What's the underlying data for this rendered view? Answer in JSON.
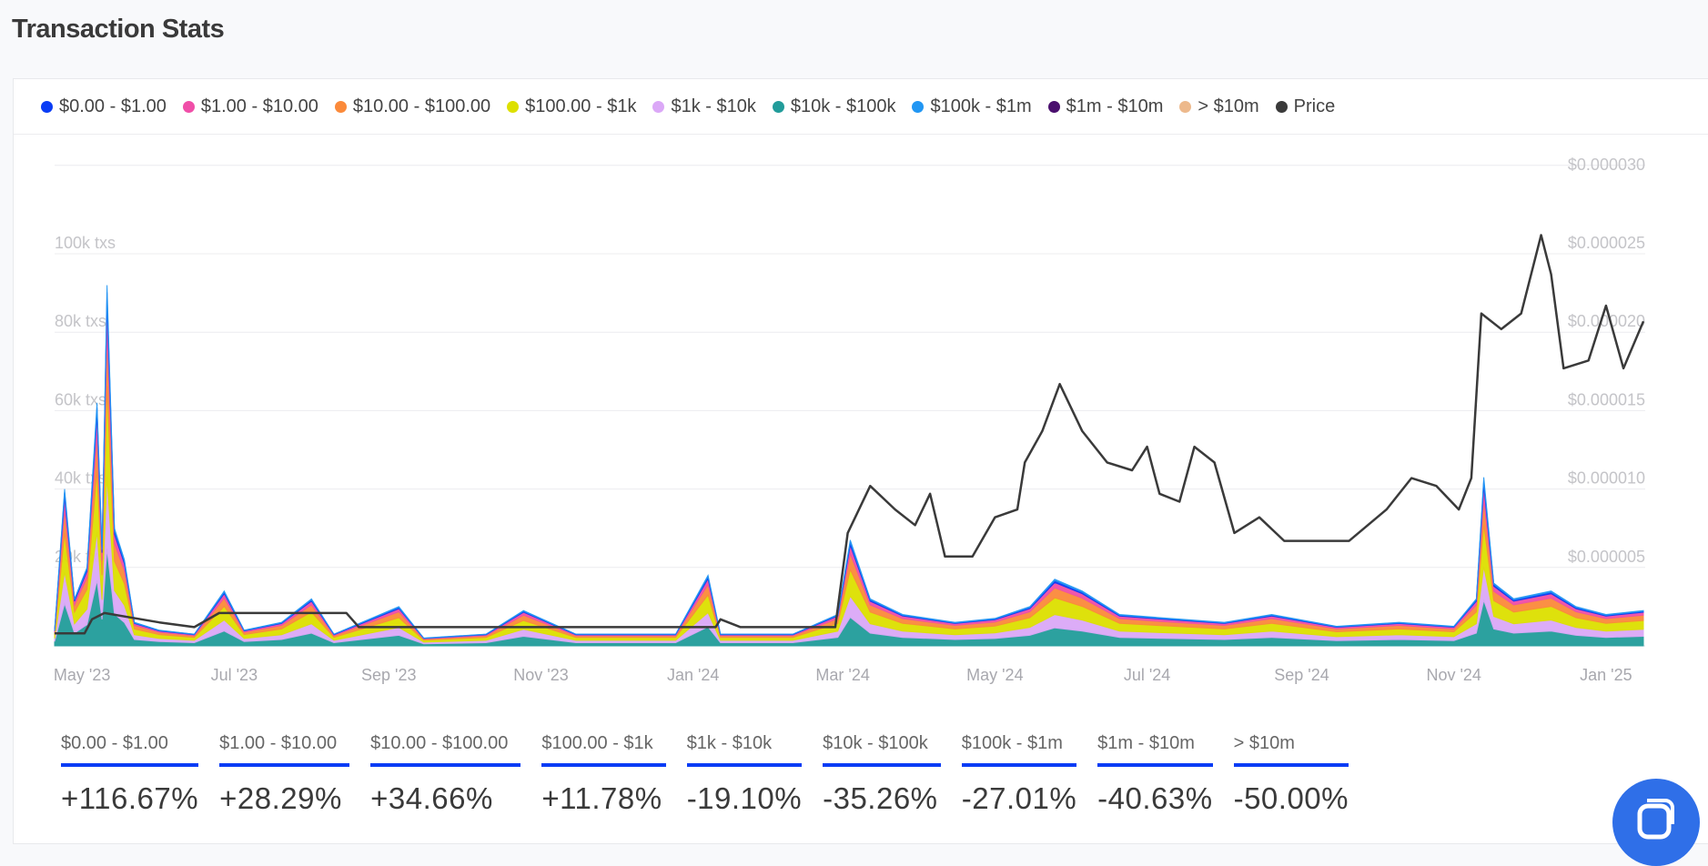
{
  "page": {
    "title": "Transaction Stats"
  },
  "legend": [
    {
      "label": "$0.00 - $1.00",
      "color": "#0a3cf5"
    },
    {
      "label": "$1.00 - $10.00",
      "color": "#f04ea8"
    },
    {
      "label": "$10.00 - $100.00",
      "color": "#fb8a3a"
    },
    {
      "label": "$100.00 - $1k",
      "color": "#dde000"
    },
    {
      "label": "$1k - $10k",
      "color": "#dba8f7"
    },
    {
      "label": "$10k - $100k",
      "color": "#219c9a"
    },
    {
      "label": "$100k - $1m",
      "color": "#2196f3"
    },
    {
      "label": "$1m - $10m",
      "color": "#4a0f6e"
    },
    {
      "label": "> $10m",
      "color": "#edb98c"
    },
    {
      "label": "Price",
      "color": "#3a3a3a"
    }
  ],
  "chart_data": {
    "type": "area",
    "title": "Transaction Stats",
    "x_ticks": [
      {
        "date": "2023-05-01",
        "label": "May '23"
      },
      {
        "date": "2023-07-01",
        "label": "Jul '23"
      },
      {
        "date": "2023-09-01",
        "label": "Sep '23"
      },
      {
        "date": "2023-11-01",
        "label": "Nov '23"
      },
      {
        "date": "2024-01-01",
        "label": "Jan '24"
      },
      {
        "date": "2024-03-01",
        "label": "Mar '24"
      },
      {
        "date": "2024-05-01",
        "label": "May '24"
      },
      {
        "date": "2024-07-01",
        "label": "Jul '24"
      },
      {
        "date": "2024-09-01",
        "label": "Sep '24"
      },
      {
        "date": "2024-11-01",
        "label": "Nov '24"
      },
      {
        "date": "2025-01-01",
        "label": "Jan '25"
      }
    ],
    "x_range": [
      "2023-04-20",
      "2025-01-16"
    ],
    "y_left": {
      "unit": "txs",
      "range": [
        0,
        100000
      ],
      "ticks": [
        {
          "v": 20000,
          "label": "20k txs"
        },
        {
          "v": 40000,
          "label": "40k txs"
        },
        {
          "v": 60000,
          "label": "60k txs"
        },
        {
          "v": 80000,
          "label": "80k txs"
        },
        {
          "v": 100000,
          "label": "100k txs"
        }
      ]
    },
    "y_right": {
      "unit": "USD",
      "range": [
        0,
        3e-05
      ],
      "ticks": [
        {
          "v": 5e-06,
          "label": "$0.000005"
        },
        {
          "v": 1e-05,
          "label": "$0.000010"
        },
        {
          "v": 1.5e-05,
          "label": "$0.000015"
        },
        {
          "v": 2e-05,
          "label": "$0.000020"
        },
        {
          "v": 2.5e-05,
          "label": "$0.000025"
        },
        {
          "v": 3e-05,
          "label": "$0.000030"
        }
      ]
    },
    "grid": true,
    "legend_position": "top-left",
    "band_shares": [
      0.03,
      0.08,
      0.15,
      0.25,
      0.2,
      0.27,
      0.02,
      0,
      0
    ],
    "tx_total": [
      [
        "2023-04-20",
        4000
      ],
      [
        "2023-04-24",
        40000
      ],
      [
        "2023-04-28",
        12000
      ],
      [
        "2023-05-03",
        20000
      ],
      [
        "2023-05-07",
        62000
      ],
      [
        "2023-05-09",
        25000
      ],
      [
        "2023-05-11",
        92000
      ],
      [
        "2023-05-14",
        30000
      ],
      [
        "2023-05-18",
        22000
      ],
      [
        "2023-05-22",
        6000
      ],
      [
        "2023-06-01",
        4000
      ],
      [
        "2023-06-15",
        3000
      ],
      [
        "2023-06-27",
        14000
      ],
      [
        "2023-07-05",
        4000
      ],
      [
        "2023-07-20",
        6000
      ],
      [
        "2023-08-01",
        12000
      ],
      [
        "2023-08-10",
        3000
      ],
      [
        "2023-09-05",
        10000
      ],
      [
        "2023-09-15",
        2000
      ],
      [
        "2023-10-10",
        3000
      ],
      [
        "2023-10-25",
        9000
      ],
      [
        "2023-11-15",
        3000
      ],
      [
        "2023-12-10",
        3000
      ],
      [
        "2023-12-25",
        3000
      ],
      [
        "2024-01-07",
        18000
      ],
      [
        "2024-01-12",
        3000
      ],
      [
        "2024-02-10",
        3000
      ],
      [
        "2024-02-28",
        8000
      ],
      [
        "2024-03-04",
        27000
      ],
      [
        "2024-03-12",
        12000
      ],
      [
        "2024-03-25",
        8000
      ],
      [
        "2024-04-15",
        6000
      ],
      [
        "2024-05-01",
        7000
      ],
      [
        "2024-05-15",
        10000
      ],
      [
        "2024-05-25",
        17000
      ],
      [
        "2024-06-05",
        14000
      ],
      [
        "2024-06-20",
        8000
      ],
      [
        "2024-07-10",
        7000
      ],
      [
        "2024-08-01",
        6000
      ],
      [
        "2024-08-20",
        8000
      ],
      [
        "2024-09-15",
        5000
      ],
      [
        "2024-10-10",
        6000
      ],
      [
        "2024-11-01",
        5000
      ],
      [
        "2024-11-10",
        12000
      ],
      [
        "2024-11-13",
        43000
      ],
      [
        "2024-11-17",
        16000
      ],
      [
        "2024-11-25",
        12000
      ],
      [
        "2024-12-10",
        14000
      ],
      [
        "2024-12-20",
        10000
      ],
      [
        "2025-01-01",
        8000
      ],
      [
        "2025-01-16",
        9000
      ]
    ],
    "price_usd_e6": [
      [
        "2023-04-20",
        0.1
      ],
      [
        "2023-05-02",
        0.1
      ],
      [
        "2023-05-05",
        1.0
      ],
      [
        "2023-05-10",
        1.4
      ],
      [
        "2023-06-01",
        0.8
      ],
      [
        "2023-06-15",
        0.5
      ],
      [
        "2023-06-25",
        1.4
      ],
      [
        "2023-08-15",
        1.4
      ],
      [
        "2023-08-20",
        0.5
      ],
      [
        "2024-01-10",
        0.5
      ],
      [
        "2024-01-12",
        1.0
      ],
      [
        "2024-01-20",
        0.5
      ],
      [
        "2024-02-27",
        0.5
      ],
      [
        "2024-03-03",
        6.5
      ],
      [
        "2024-03-12",
        9.5
      ],
      [
        "2024-03-22",
        8.0
      ],
      [
        "2024-03-30",
        7.0
      ],
      [
        "2024-04-05",
        9.0
      ],
      [
        "2024-04-11",
        5.0
      ],
      [
        "2024-04-22",
        5.0
      ],
      [
        "2024-05-01",
        7.5
      ],
      [
        "2024-05-10",
        8.0
      ],
      [
        "2024-05-13",
        11.0
      ],
      [
        "2024-05-20",
        13.0
      ],
      [
        "2024-05-27",
        16.0
      ],
      [
        "2024-06-05",
        13.0
      ],
      [
        "2024-06-15",
        11.0
      ],
      [
        "2024-06-25",
        10.5
      ],
      [
        "2024-07-01",
        12.0
      ],
      [
        "2024-07-06",
        9.0
      ],
      [
        "2024-07-14",
        8.5
      ],
      [
        "2024-07-20",
        12.0
      ],
      [
        "2024-07-28",
        11.0
      ],
      [
        "2024-08-05",
        6.5
      ],
      [
        "2024-08-15",
        7.5
      ],
      [
        "2024-08-25",
        6.0
      ],
      [
        "2024-09-20",
        6.0
      ],
      [
        "2024-10-05",
        8.0
      ],
      [
        "2024-10-15",
        10.0
      ],
      [
        "2024-10-25",
        9.5
      ],
      [
        "2024-11-03",
        8.0
      ],
      [
        "2024-11-08",
        10.0
      ],
      [
        "2024-11-12",
        20.5
      ],
      [
        "2024-11-20",
        19.5
      ],
      [
        "2024-11-28",
        20.5
      ],
      [
        "2024-12-06",
        25.5
      ],
      [
        "2024-12-10",
        23.0
      ],
      [
        "2024-12-15",
        17.0
      ],
      [
        "2024-12-25",
        17.5
      ],
      [
        "2025-01-01",
        21.0
      ],
      [
        "2025-01-08",
        17.0
      ],
      [
        "2025-01-16",
        20.0
      ]
    ]
  },
  "stats": [
    {
      "label": "$0.00 - $1.00",
      "value": "+116.67%"
    },
    {
      "label": "$1.00 - $10.00",
      "value": "+28.29%"
    },
    {
      "label": "$10.00 - $100.00",
      "value": "+34.66%"
    },
    {
      "label": "$100.00 - $1k",
      "value": "+11.78%"
    },
    {
      "label": "$1k - $10k",
      "value": "-19.10%"
    },
    {
      "label": "$10k - $100k",
      "value": "-35.26%"
    },
    {
      "label": "$100k - $1m",
      "value": "-27.01%"
    },
    {
      "label": "$1m - $10m",
      "value": "-40.63%"
    },
    {
      "label": "> $10m",
      "value": "-50.00%"
    }
  ],
  "chat": {
    "icon": "chat-bubble-icon"
  }
}
